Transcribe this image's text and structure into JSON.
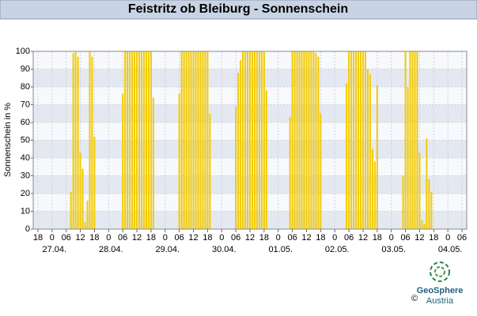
{
  "chart_data": {
    "type": "bar",
    "title": "Feistritz ob Bleiburg - Sonnenschein",
    "y_label": "Sonnenschein in %",
    "x": [
      8,
      9,
      10,
      11,
      12,
      13,
      14,
      15,
      16,
      17,
      18,
      30,
      31,
      32,
      33,
      34,
      35,
      36,
      37,
      38,
      39,
      40,
      41,
      42,
      43,
      54,
      55,
      56,
      57,
      58,
      59,
      60,
      61,
      62,
      63,
      64,
      65,
      66,
      67,
      78,
      79,
      80,
      81,
      82,
      83,
      84,
      85,
      86,
      87,
      88,
      89,
      90,
      91,
      101,
      102,
      103,
      104,
      105,
      106,
      107,
      108,
      109,
      110,
      111,
      112,
      113,
      114,
      125,
      126,
      127,
      128,
      129,
      130,
      131,
      132,
      133,
      134,
      135,
      136,
      137,
      138,
      149,
      150,
      151,
      152,
      153,
      154,
      155,
      156,
      157,
      158,
      159,
      160,
      161
    ],
    "values": [
      21,
      99,
      100,
      97,
      43,
      34,
      4,
      16,
      100,
      97,
      52,
      76,
      100,
      100,
      100,
      100,
      100,
      100,
      100,
      100,
      100,
      100,
      100,
      100,
      74,
      76,
      100,
      100,
      100,
      100,
      100,
      100,
      100,
      100,
      100,
      100,
      100,
      100,
      65,
      69,
      88,
      95,
      100,
      100,
      100,
      100,
      100,
      100,
      100,
      100,
      100,
      100,
      78,
      63,
      100,
      100,
      100,
      100,
      100,
      100,
      100,
      100,
      100,
      100,
      99,
      97,
      65,
      82,
      100,
      100,
      100,
      100,
      100,
      100,
      100,
      100,
      90,
      87,
      45,
      38,
      81,
      30,
      100,
      80,
      100,
      100,
      100,
      100,
      43,
      5,
      3,
      51,
      28,
      21
    ],
    "color": "#f2cc0c",
    "xlim": [
      -8,
      176
    ],
    "ylim": [
      0,
      100
    ],
    "yticks": [
      0,
      10,
      20,
      30,
      40,
      50,
      60,
      70,
      80,
      90,
      100
    ],
    "xticks": [
      {
        "value": -6,
        "label": "18"
      },
      {
        "value": 0,
        "label": "0"
      },
      {
        "value": 6,
        "label": "06"
      },
      {
        "value": 12,
        "label": "12"
      },
      {
        "value": 18,
        "label": "18"
      },
      {
        "value": 24,
        "label": "0"
      },
      {
        "value": 30,
        "label": "06"
      },
      {
        "value": 36,
        "label": "12"
      },
      {
        "value": 42,
        "label": "18"
      },
      {
        "value": 48,
        "label": "0"
      },
      {
        "value": 54,
        "label": "06"
      },
      {
        "value": 60,
        "label": "12"
      },
      {
        "value": 66,
        "label": "18"
      },
      {
        "value": 72,
        "label": "0"
      },
      {
        "value": 78,
        "label": "06"
      },
      {
        "value": 84,
        "label": "12"
      },
      {
        "value": 90,
        "label": "18"
      },
      {
        "value": 96,
        "label": "0"
      },
      {
        "value": 102,
        "label": "06"
      },
      {
        "value": 108,
        "label": "12"
      },
      {
        "value": 114,
        "label": "18"
      },
      {
        "value": 120,
        "label": "0"
      },
      {
        "value": 126,
        "label": "06"
      },
      {
        "value": 132,
        "label": "12"
      },
      {
        "value": 138,
        "label": "18"
      },
      {
        "value": 144,
        "label": "0"
      },
      {
        "value": 150,
        "label": "06"
      },
      {
        "value": 156,
        "label": "12"
      },
      {
        "value": 162,
        "label": "18"
      },
      {
        "value": 168,
        "label": "0"
      },
      {
        "value": 174,
        "label": "06"
      }
    ],
    "date_ticks": [
      {
        "value": 0,
        "label": "27.04."
      },
      {
        "value": 24,
        "label": "28.04."
      },
      {
        "value": 48,
        "label": "29.04."
      },
      {
        "value": 72,
        "label": "30.04."
      },
      {
        "value": 96,
        "label": "01.05."
      },
      {
        "value": 120,
        "label": "02.05."
      },
      {
        "value": 144,
        "label": "03.05."
      },
      {
        "value": 168,
        "label": "04.05."
      }
    ],
    "grid": true,
    "logo_name": "GeoSphere",
    "logo_country": "Austria",
    "copyright": "©"
  }
}
